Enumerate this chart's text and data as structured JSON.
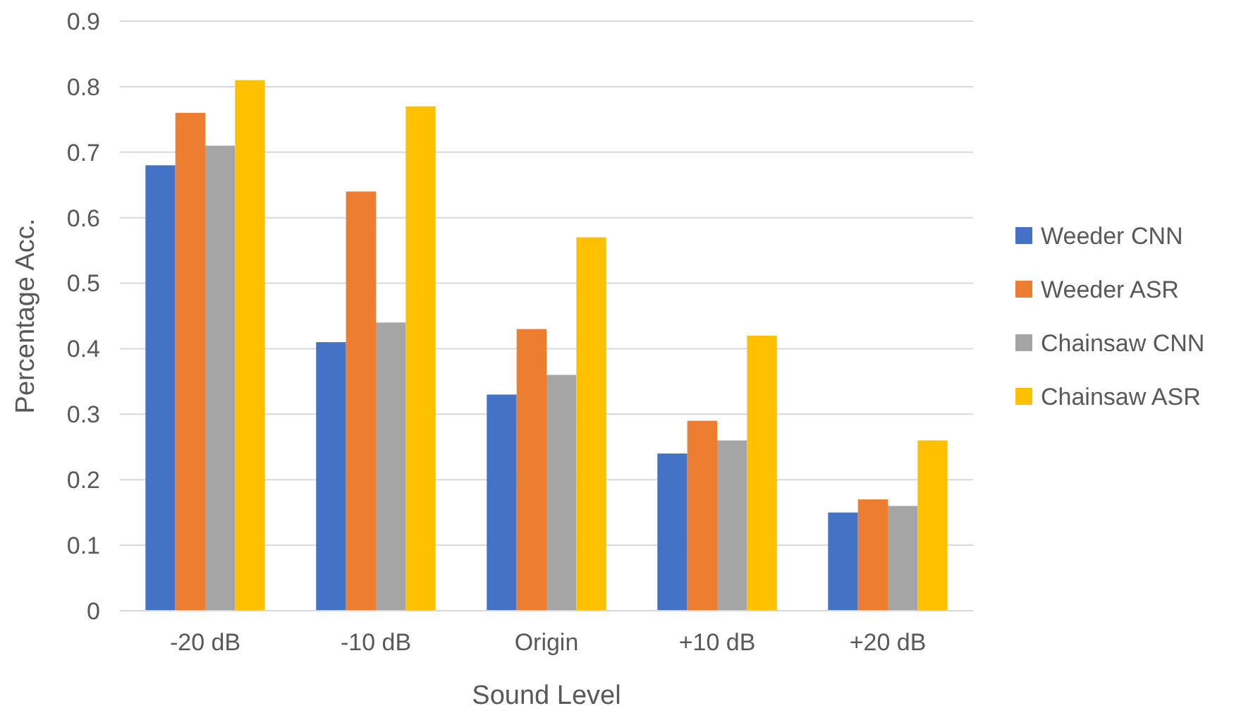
{
  "chart_data": {
    "type": "bar",
    "xlabel": "Sound Level",
    "ylabel": "Percentage Acc.",
    "categories": [
      "-20 dB",
      "-10 dB",
      "Origin",
      "+10 dB",
      "+20 dB"
    ],
    "series": [
      {
        "name": "Weeder CNN",
        "color": "#4472c4",
        "values": [
          0.68,
          0.41,
          0.33,
          0.24,
          0.15
        ]
      },
      {
        "name": "Weeder ASR",
        "color": "#ed7d31",
        "values": [
          0.76,
          0.64,
          0.43,
          0.29,
          0.17
        ]
      },
      {
        "name": "Chainsaw CNN",
        "color": "#a5a5a5",
        "values": [
          0.71,
          0.44,
          0.36,
          0.26,
          0.16
        ]
      },
      {
        "name": "Chainsaw ASR",
        "color": "#ffc000",
        "values": [
          0.81,
          0.77,
          0.57,
          0.42,
          0.26
        ]
      }
    ],
    "ylim": [
      0,
      0.9
    ],
    "yticks": [
      0,
      0.1,
      0.2,
      0.3,
      0.4,
      0.5,
      0.6,
      0.7,
      0.8,
      0.9
    ],
    "grid": "y",
    "legend": "right"
  }
}
